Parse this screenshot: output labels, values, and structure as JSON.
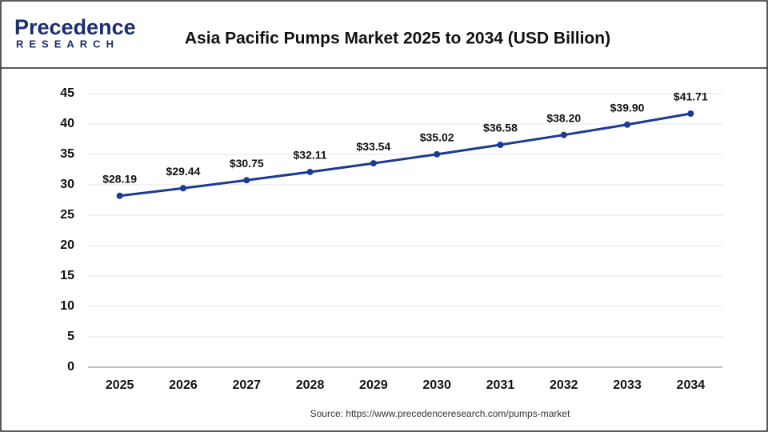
{
  "logo": {
    "name": "Precedence",
    "subtitle": "RESEARCH"
  },
  "chart_data": {
    "type": "line",
    "title": "Asia Pacific Pumps Market 2025 to 2034 (USD Billion)",
    "categories": [
      "2025",
      "2026",
      "2027",
      "2028",
      "2029",
      "2030",
      "2031",
      "2032",
      "2033",
      "2034"
    ],
    "values": [
      28.19,
      29.44,
      30.75,
      32.11,
      33.54,
      35.02,
      36.58,
      38.2,
      39.9,
      41.71
    ],
    "value_labels": [
      "$28.19",
      "$29.44",
      "$30.75",
      "$32.11",
      "$33.54",
      "$35.02",
      "$36.58",
      "$38.20",
      "$39.90",
      "$41.71"
    ],
    "color": "#1b3a93",
    "ylim": [
      0,
      45
    ],
    "yticks": [
      0,
      5,
      10,
      15,
      20,
      25,
      30,
      35,
      40,
      45
    ],
    "grid": true,
    "source": "Source: https://www.precedenceresearch.com/pumps-market"
  }
}
